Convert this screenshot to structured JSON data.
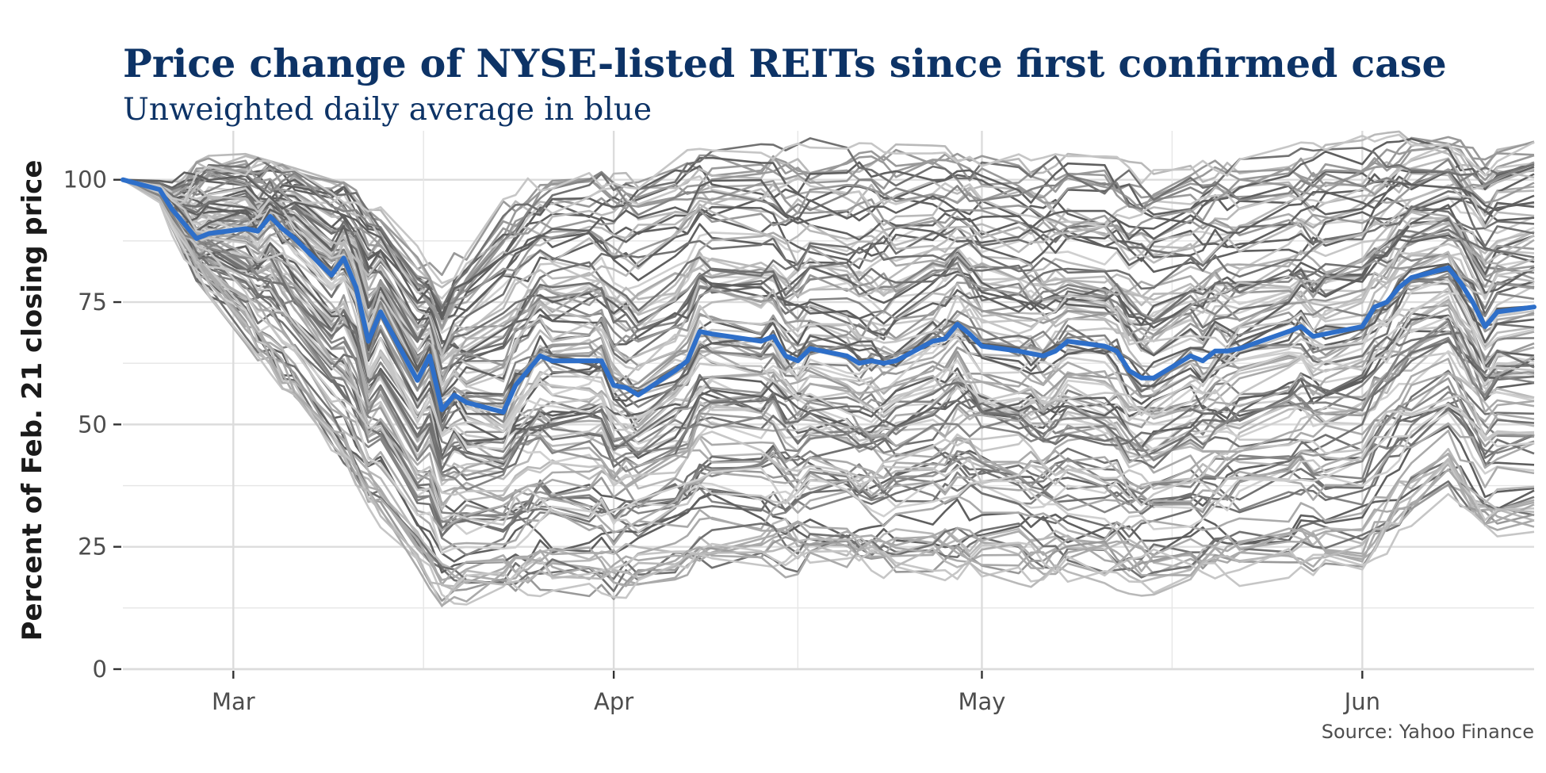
{
  "chart_data": {
    "type": "line",
    "title": "Price change of NYSE-listed REITs since first confirmed case",
    "subtitle": "Unweighted daily average in blue",
    "ylabel": "Percent of Feb. 21 closing price",
    "xlabel": "",
    "source": "Source: Yahoo Finance",
    "xlim": [
      "2020-02-21",
      "2020-06-15"
    ],
    "ylim": [
      0,
      110
    ],
    "y_ticks": [
      0,
      25,
      50,
      75,
      100
    ],
    "x_ticks": [
      {
        "date": "2020-03-01",
        "label": "Mar"
      },
      {
        "date": "2020-04-01",
        "label": "Apr"
      },
      {
        "date": "2020-05-01",
        "label": "May"
      },
      {
        "date": "2020-06-01",
        "label": "Jun"
      }
    ],
    "grid": true,
    "legend": "none",
    "colors": {
      "average": "#2e6fc9",
      "individual": "#9e9e9e",
      "title": "#0d3366"
    },
    "series": [
      {
        "role": "average",
        "name": "",
        "points": [
          [
            "2020-02-21",
            100
          ],
          [
            "2020-02-24",
            98
          ],
          [
            "2020-02-25",
            94
          ],
          [
            "2020-02-26",
            91
          ],
          [
            "2020-02-27",
            88
          ],
          [
            "2020-02-28",
            89
          ],
          [
            "2020-03-02",
            90
          ],
          [
            "2020-03-03",
            89.5
          ],
          [
            "2020-03-04",
            92.5
          ],
          [
            "2020-03-05",
            90
          ],
          [
            "2020-03-06",
            88
          ],
          [
            "2020-03-09",
            80.5
          ],
          [
            "2020-03-10",
            84
          ],
          [
            "2020-03-11",
            78
          ],
          [
            "2020-03-12",
            67
          ],
          [
            "2020-03-13",
            73
          ],
          [
            "2020-03-16",
            59
          ],
          [
            "2020-03-17",
            64
          ],
          [
            "2020-03-18",
            53
          ],
          [
            "2020-03-19",
            56
          ],
          [
            "2020-03-20",
            54.5
          ],
          [
            "2020-03-23",
            52.5
          ],
          [
            "2020-03-24",
            58
          ],
          [
            "2020-03-25",
            61
          ],
          [
            "2020-03-26",
            64
          ],
          [
            "2020-03-27",
            63
          ],
          [
            "2020-03-30",
            63
          ],
          [
            "2020-03-31",
            63
          ],
          [
            "2020-04-01",
            58
          ],
          [
            "2020-04-02",
            57.5
          ],
          [
            "2020-04-03",
            56
          ],
          [
            "2020-04-06",
            61
          ],
          [
            "2020-04-07",
            63
          ],
          [
            "2020-04-08",
            69
          ],
          [
            "2020-04-09",
            68.5
          ],
          [
            "2020-04-13",
            67
          ],
          [
            "2020-04-14",
            68
          ],
          [
            "2020-04-15",
            64
          ],
          [
            "2020-04-16",
            63
          ],
          [
            "2020-04-17",
            65.5
          ],
          [
            "2020-04-20",
            64
          ],
          [
            "2020-04-21",
            62.5
          ],
          [
            "2020-04-22",
            63
          ],
          [
            "2020-04-23",
            62.5
          ],
          [
            "2020-04-24",
            63
          ],
          [
            "2020-04-27",
            67
          ],
          [
            "2020-04-28",
            67.5
          ],
          [
            "2020-04-29",
            70.5
          ],
          [
            "2020-04-30",
            68.5
          ],
          [
            "2020-05-01",
            66
          ],
          [
            "2020-05-04",
            65
          ],
          [
            "2020-05-05",
            64.5
          ],
          [
            "2020-05-06",
            64
          ],
          [
            "2020-05-07",
            65
          ],
          [
            "2020-05-08",
            67
          ],
          [
            "2020-05-11",
            66
          ],
          [
            "2020-05-12",
            65
          ],
          [
            "2020-05-13",
            61
          ],
          [
            "2020-05-14",
            59.5
          ],
          [
            "2020-05-15",
            59.5
          ],
          [
            "2020-05-18",
            64
          ],
          [
            "2020-05-19",
            63
          ],
          [
            "2020-05-20",
            65
          ],
          [
            "2020-05-21",
            65
          ],
          [
            "2020-05-22",
            65.5
          ],
          [
            "2020-05-26",
            69
          ],
          [
            "2020-05-27",
            70
          ],
          [
            "2020-05-28",
            68
          ],
          [
            "2020-05-29",
            68.5
          ],
          [
            "2020-06-01",
            70
          ],
          [
            "2020-06-02",
            74
          ],
          [
            "2020-06-03",
            75
          ],
          [
            "2020-06-04",
            78
          ],
          [
            "2020-06-05",
            80
          ],
          [
            "2020-06-08",
            82
          ],
          [
            "2020-06-09",
            79
          ],
          [
            "2020-06-10",
            75
          ],
          [
            "2020-06-11",
            70
          ],
          [
            "2020-06-12",
            73
          ],
          [
            "2020-06-15",
            74
          ]
        ]
      }
    ],
    "individual_series": {
      "note_count": 120,
      "envelope": {
        "dates": [
          "2020-02-21",
          "2020-03-01",
          "2020-03-12",
          "2020-03-18",
          "2020-03-23",
          "2020-04-01",
          "2020-04-08",
          "2020-04-29",
          "2020-05-14",
          "2020-06-01",
          "2020-06-08",
          "2020-06-11",
          "2020-06-15"
        ],
        "upper": [
          100,
          105,
          97,
          80,
          100,
          104,
          108,
          108,
          103,
          108,
          110,
          107,
          109
        ],
        "lower": [
          100,
          72,
          34,
          14,
          17,
          15,
          20,
          20,
          17,
          21,
          37,
          27,
          27
        ]
      }
    }
  }
}
